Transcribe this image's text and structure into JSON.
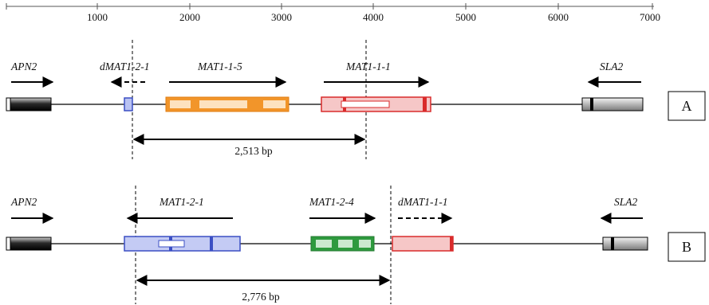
{
  "scale": {
    "ticks": [
      "1000",
      "2000",
      "3000",
      "4000",
      "5000",
      "6000",
      "7000"
    ]
  },
  "panel_a": {
    "label": "A",
    "genes": {
      "apn2": "APN2",
      "dmat1_2_1": "dMAT1-2-1",
      "mat1_1_5": "MAT1-1-5",
      "mat1_1_1": "MAT1-1-1",
      "sla2": "SLA2"
    },
    "distance": "2,513 bp"
  },
  "panel_b": {
    "label": "B",
    "genes": {
      "apn2": "APN2",
      "mat1_2_1": "MAT1-2-1",
      "mat1_2_4": "MAT1-2-4",
      "dmat1_1_1": "dMAT1-1-1",
      "sla2": "SLA2"
    },
    "distance": "2,776 bp"
  },
  "colors": {
    "apn2": "#2b2b2b",
    "mat1_2": "#3b4fc4",
    "mat1_1_5": "#f2952a",
    "mat1_1_1": "#d92b2b",
    "mat1_2_4": "#2e9a3e",
    "sla2": "#444444"
  }
}
